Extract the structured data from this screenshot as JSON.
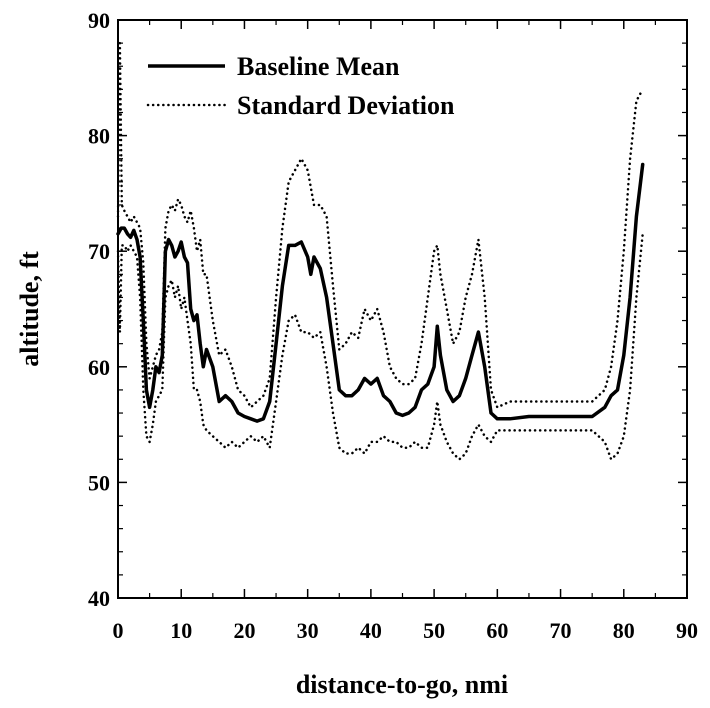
{
  "chart_data": {
    "type": "line",
    "title": "",
    "xlabel": "distance-to-go, nmi",
    "ylabel": "altitude, ft",
    "xlim": [
      0,
      90
    ],
    "ylim": [
      40,
      90
    ],
    "xticks": [
      0,
      10,
      20,
      30,
      40,
      50,
      60,
      70,
      80,
      90
    ],
    "yticks": [
      40,
      50,
      60,
      70,
      80,
      90
    ],
    "grid": false,
    "legend_position": "top-left",
    "series": [
      {
        "name": "Baseline Mean",
        "style": "solid",
        "color": "#000000",
        "x": [
          0,
          0.5,
          1,
          1.5,
          2,
          2.5,
          3,
          3.5,
          4,
          4.5,
          5,
          5.5,
          6,
          6.5,
          7,
          7.5,
          8,
          8.5,
          9,
          9.5,
          10,
          10.5,
          11,
          11.5,
          12,
          12.5,
          13,
          13.5,
          14,
          15,
          16,
          17,
          18,
          19,
          20,
          21,
          22,
          23,
          24,
          25,
          26,
          27,
          28,
          29,
          30,
          30.5,
          31,
          32,
          33,
          34,
          35,
          36,
          37,
          38,
          39,
          40,
          41,
          42,
          43,
          44,
          45,
          46,
          47,
          48,
          49,
          50,
          50.5,
          51,
          52,
          53,
          54,
          55,
          56,
          57,
          58,
          59,
          60,
          62,
          65,
          70,
          75,
          77,
          78,
          79,
          80,
          81,
          82,
          83
        ],
        "values": [
          71.5,
          72,
          72,
          71.5,
          71.2,
          71.8,
          71,
          69.5,
          64,
          58,
          56.5,
          58,
          60,
          59.5,
          61,
          70,
          71,
          70.5,
          69.5,
          70,
          70.8,
          69.5,
          69,
          65,
          64,
          64.5,
          62,
          60,
          61.5,
          60,
          57,
          57.5,
          57,
          56,
          55.7,
          55.5,
          55.3,
          55.5,
          57,
          62,
          67,
          70.5,
          70.5,
          70.8,
          69.5,
          68,
          69.5,
          68.5,
          66,
          62,
          58,
          57.5,
          57.5,
          58,
          59,
          58.5,
          59,
          57.5,
          57,
          56,
          55.8,
          56,
          56.5,
          58,
          58.5,
          60,
          63.5,
          61,
          58,
          57,
          57.5,
          59,
          61,
          63,
          60,
          56,
          55.5,
          55.5,
          55.7,
          55.7,
          55.7,
          56.5,
          57.5,
          58,
          61,
          66,
          73,
          77.5
        ]
      },
      {
        "name": "Standard Deviation",
        "style": "dotted",
        "color": "#000000",
        "x": [
          0,
          0.3,
          0.6,
          1,
          1.5,
          2,
          2.5,
          3,
          3.5,
          4,
          4.5,
          5,
          5.5,
          6,
          6.5,
          7,
          7.5,
          8,
          8.5,
          9,
          9.5,
          10,
          10.5,
          11,
          11.5,
          12,
          12.5,
          13,
          13.5,
          14,
          15,
          16,
          17,
          18,
          19,
          20,
          21,
          22,
          23,
          24,
          25,
          26,
          27,
          28,
          29,
          30,
          31,
          32,
          33,
          34,
          35,
          36,
          37,
          38,
          39,
          40,
          41,
          42,
          43,
          44,
          45,
          46,
          47,
          48,
          49,
          50,
          50.5,
          51,
          52,
          53,
          54,
          55,
          56,
          57,
          58,
          59,
          60,
          62,
          65,
          70,
          75,
          77,
          78,
          79,
          80,
          81,
          82,
          83
        ],
        "values": [
          73,
          88,
          74,
          73.5,
          73,
          72.5,
          73,
          72.5,
          72,
          69,
          62,
          59,
          60,
          61,
          61.5,
          63,
          72,
          73.5,
          74,
          73.5,
          74.5,
          74,
          73,
          72.5,
          73.5,
          72,
          70,
          71,
          68,
          68,
          64,
          61,
          61.5,
          60,
          58,
          57.5,
          56.5,
          57,
          57.5,
          59,
          66,
          72,
          76,
          77,
          78,
          77,
          74,
          74,
          73,
          67,
          61.5,
          62,
          63,
          62.5,
          65,
          64,
          65,
          63,
          60,
          59,
          58.5,
          58.5,
          59,
          62,
          66,
          70,
          70.5,
          68,
          65,
          62,
          63,
          66,
          68,
          71,
          66,
          58,
          56.5,
          57,
          57,
          57,
          57,
          58,
          60,
          64,
          70,
          78,
          83,
          84
        ]
      },
      {
        "name": "Standard Deviation",
        "style": "dotted",
        "color": "#000000",
        "x": [
          0,
          0.3,
          0.6,
          1,
          1.5,
          2,
          2.5,
          3,
          3.5,
          4,
          4.5,
          5,
          5.5,
          6,
          6.5,
          7,
          7.5,
          8,
          8.5,
          9,
          9.5,
          10,
          10.5,
          11,
          11.5,
          12,
          12.5,
          13,
          13.5,
          14,
          15,
          16,
          17,
          18,
          19,
          20,
          21,
          22,
          23,
          24,
          25,
          26,
          27,
          28,
          29,
          30,
          31,
          32,
          33,
          34,
          35,
          36,
          37,
          38,
          39,
          40,
          41,
          42,
          43,
          44,
          45,
          46,
          47,
          48,
          49,
          50,
          50.5,
          51,
          52,
          53,
          54,
          55,
          56,
          57,
          58,
          59,
          60,
          62,
          65,
          70,
          75,
          77,
          78,
          79,
          80,
          81,
          82,
          83
        ],
        "values": [
          70,
          63,
          70.5,
          70.5,
          70,
          70.5,
          70,
          69.5,
          66,
          58,
          54,
          53.5,
          55,
          57,
          57.5,
          58,
          66,
          67,
          67.5,
          66,
          67,
          65,
          66,
          64,
          62,
          58,
          58,
          57,
          55,
          54.5,
          54,
          53.5,
          53,
          53.5,
          53,
          53.5,
          54,
          53.5,
          54,
          53,
          57,
          61,
          64,
          64.5,
          63,
          63,
          62.5,
          63,
          60,
          56,
          53,
          52.5,
          52.5,
          53,
          52.5,
          53.5,
          53.5,
          54,
          53.5,
          53.5,
          53,
          53,
          53.5,
          53,
          53,
          55,
          57,
          55,
          53.5,
          52.5,
          52,
          52.5,
          54,
          55,
          54,
          53.5,
          54.5,
          54.5,
          54.5,
          54.5,
          54.5,
          53.5,
          52,
          52.5,
          54,
          58,
          66,
          71.5
        ]
      }
    ]
  }
}
